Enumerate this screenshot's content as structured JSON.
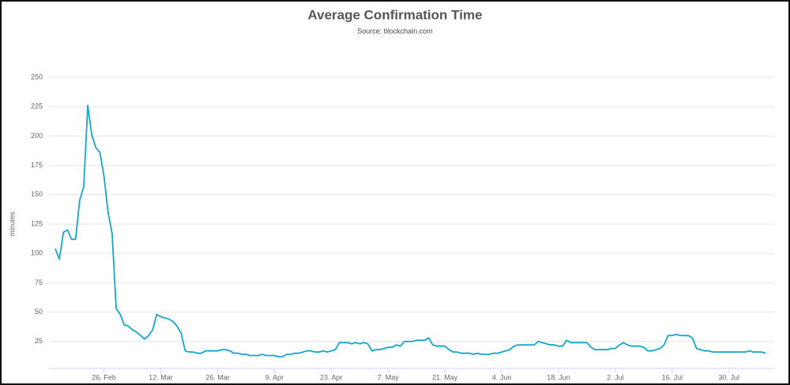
{
  "chart_data": {
    "type": "line",
    "title": "Average Confirmation Time",
    "subtitle": "Source: blockchain.com",
    "y_label": "minutes",
    "color": "#17a6c8",
    "grid": true,
    "ylim": [
      2,
      250
    ],
    "yticks": [
      25,
      50,
      75,
      100,
      125,
      150,
      175,
      200,
      225,
      250
    ],
    "categories": [
      null,
      null,
      null,
      null,
      null,
      null,
      null,
      null,
      null,
      null,
      null,
      null,
      "26. Feb",
      null,
      null,
      null,
      null,
      null,
      null,
      null,
      null,
      null,
      null,
      null,
      null,
      null,
      "12. Mar",
      null,
      null,
      null,
      null,
      null,
      null,
      null,
      null,
      null,
      null,
      null,
      null,
      null,
      "26. Mar",
      null,
      null,
      null,
      null,
      null,
      null,
      null,
      null,
      null,
      null,
      null,
      null,
      null,
      "9. Apr",
      null,
      null,
      null,
      null,
      null,
      null,
      null,
      null,
      null,
      null,
      null,
      null,
      null,
      "23. Apr",
      null,
      null,
      null,
      null,
      null,
      null,
      null,
      null,
      null,
      null,
      null,
      null,
      null,
      "7. May",
      null,
      null,
      null,
      null,
      null,
      null,
      null,
      null,
      null,
      null,
      null,
      null,
      null,
      "21. May",
      null,
      null,
      null,
      null,
      null,
      null,
      null,
      null,
      null,
      null,
      null,
      null,
      null,
      "4. Jun",
      null,
      null,
      null,
      null,
      null,
      null,
      null,
      null,
      null,
      null,
      null,
      null,
      null,
      "18. Jun",
      null,
      null,
      null,
      null,
      null,
      null,
      null,
      null,
      null,
      null,
      null,
      null,
      null,
      "2. Jul",
      null,
      null,
      null,
      null,
      null,
      null,
      null,
      null,
      null,
      null,
      null,
      null,
      null,
      "16. Jul",
      null,
      null,
      null,
      null,
      null,
      null,
      null,
      null,
      null,
      null,
      null,
      null,
      null,
      "30. Jul",
      null,
      null,
      null,
      null,
      null,
      null,
      null,
      null,
      null
    ],
    "values": [
      104,
      95,
      118,
      120,
      112,
      112,
      145,
      157,
      226,
      201,
      190,
      186,
      166,
      135,
      117,
      53,
      48,
      39,
      38,
      35,
      33,
      30,
      27,
      30,
      35,
      48,
      46,
      45,
      44,
      42,
      38,
      32,
      17,
      16,
      16,
      15,
      15,
      17,
      17,
      17,
      17,
      18,
      18,
      17,
      15,
      15,
      14,
      14,
      13,
      13,
      13,
      14,
      13,
      13,
      13,
      12,
      12,
      14,
      14,
      15,
      15,
      16,
      17,
      17,
      16,
      16,
      17,
      16,
      17,
      18,
      24,
      24,
      24,
      23,
      24,
      23,
      24,
      23,
      17,
      18,
      18,
      19,
      20,
      20,
      22,
      21,
      25,
      25,
      25,
      26,
      26,
      26,
      28,
      22,
      21,
      21,
      21,
      18,
      16,
      16,
      15,
      15,
      15,
      14,
      15,
      14,
      14,
      14,
      15,
      15,
      16,
      17,
      18,
      21,
      22,
      22,
      22,
      22,
      22,
      25,
      24,
      23,
      22,
      22,
      21,
      21,
      26,
      24,
      24,
      24,
      24,
      24,
      20,
      18,
      18,
      18,
      18,
      19,
      19,
      22,
      24,
      22,
      21,
      21,
      21,
      20,
      17,
      17,
      18,
      19,
      22,
      30,
      30,
      31,
      30,
      30,
      30,
      28,
      19,
      18,
      17,
      17,
      16,
      16,
      16,
      16,
      16,
      16,
      16,
      16,
      16,
      17,
      16,
      16,
      16,
      15
    ]
  }
}
